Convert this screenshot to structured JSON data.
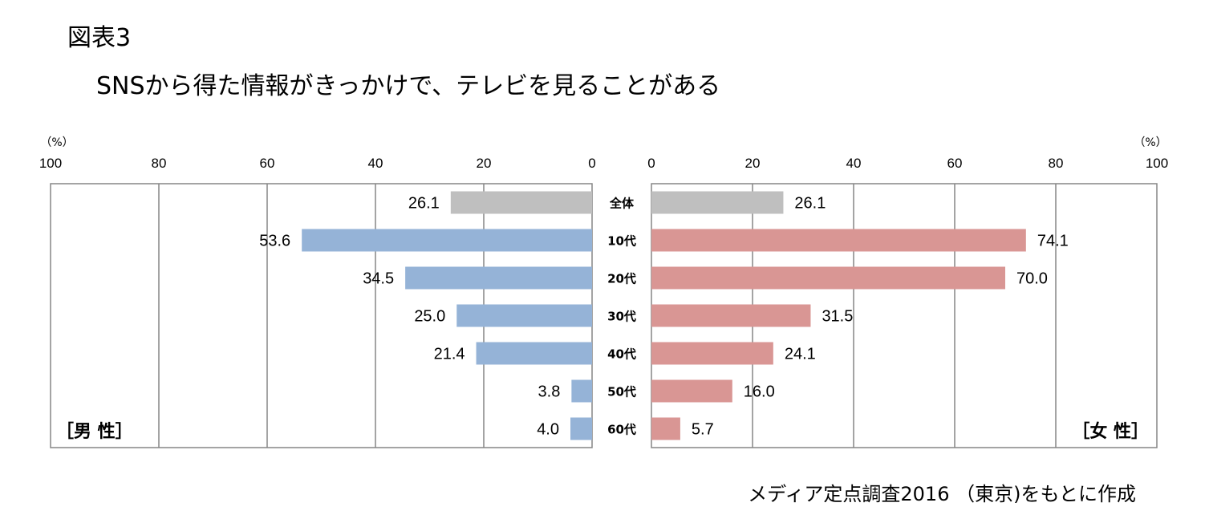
{
  "figure": {
    "label": "図表3",
    "title": "SNSから得た情報がきっかけで、テレビを見ることがある",
    "source": "メディア定点調査2016 （東京)をもとに作成"
  },
  "chart_data": {
    "type": "bar",
    "orientation": "horizontal",
    "layout": "butterfly",
    "title": "SNSから得た情報がきっかけで、テレビを見ることがある",
    "categories": [
      "全体",
      "10代",
      "20代",
      "30代",
      "40代",
      "50代",
      "60代"
    ],
    "unit_label": "（%）",
    "xlim": [
      0,
      100
    ],
    "xticks": [
      0,
      20,
      40,
      60,
      80,
      100
    ],
    "series": [
      {
        "name": "男性",
        "panel_label": "［男 性］",
        "side": "left",
        "values": [
          26.1,
          53.6,
          34.5,
          25.0,
          21.4,
          3.8,
          4.0
        ],
        "labels": [
          "26.1",
          "53.6",
          "34.5",
          "25.0",
          "21.4",
          "3.8",
          "4.0"
        ],
        "color": "#95b3d7",
        "total_color": "#bfbfbf"
      },
      {
        "name": "女性",
        "panel_label": "［女 性］",
        "side": "right",
        "values": [
          26.1,
          74.1,
          70.0,
          31.5,
          24.1,
          16.0,
          5.7
        ],
        "labels": [
          "26.1",
          "74.1",
          "70.0",
          "31.5",
          "24.1",
          "16.0",
          "5.7"
        ],
        "color": "#d99694",
        "total_color": "#bfbfbf"
      }
    ],
    "grid": true
  }
}
